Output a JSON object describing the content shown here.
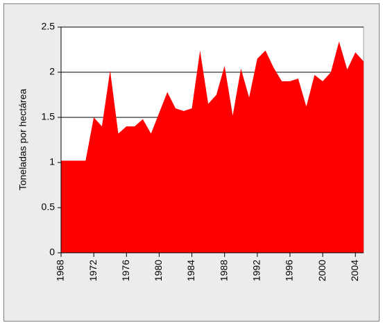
{
  "chart_data": {
    "type": "area",
    "y_label": "Toneladas por hectárea",
    "x": [
      1968,
      1969,
      1970,
      1971,
      1972,
      1973,
      1974,
      1975,
      1976,
      1977,
      1978,
      1979,
      1980,
      1981,
      1982,
      1983,
      1984,
      1985,
      1986,
      1987,
      1988,
      1989,
      1990,
      1991,
      1992,
      1993,
      1994,
      1995,
      1996,
      1997,
      1998,
      1999,
      2000,
      2001,
      2002,
      2003,
      2004,
      2005
    ],
    "values": [
      1.02,
      1.02,
      1.02,
      1.02,
      1.5,
      1.4,
      2.02,
      1.32,
      1.4,
      1.4,
      1.48,
      1.32,
      1.55,
      1.78,
      1.6,
      1.57,
      1.6,
      2.24,
      1.65,
      1.75,
      2.07,
      1.52,
      2.04,
      1.72,
      2.15,
      2.24,
      2.05,
      1.9,
      1.9,
      1.93,
      1.62,
      1.97,
      1.9,
      2.0,
      2.34,
      2.03,
      2.22,
      2.12
    ],
    "color": "#ff0000",
    "xlim": [
      1968,
      2005
    ],
    "xticks": [
      1968,
      1972,
      1976,
      1980,
      1984,
      1988,
      1992,
      1996,
      2000,
      2004
    ],
    "ylim": [
      0,
      2.5
    ],
    "yticks": [
      0,
      {
        "value": 0.5,
        "label": "0.5"
      },
      1,
      1.5,
      2,
      2.5
    ],
    "grid": true
  }
}
